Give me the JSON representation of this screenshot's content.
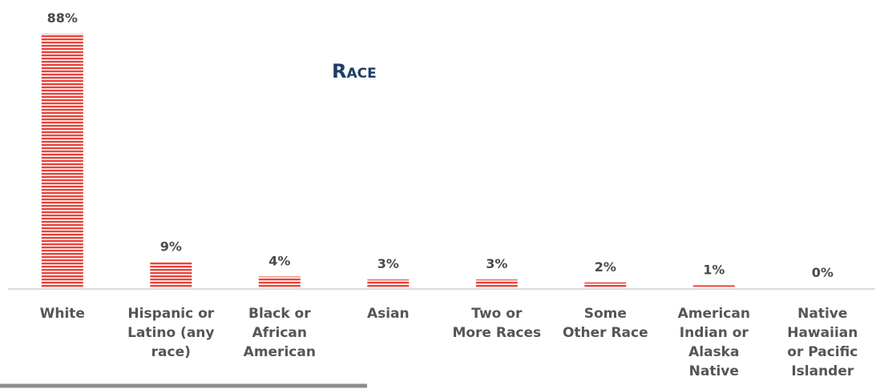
{
  "chart_data": {
    "type": "bar",
    "title": "Race",
    "categories": [
      "White",
      "Hispanic or Latino (any race)",
      "Black or African American",
      "Asian",
      "Two or More Races",
      "Some Other Race",
      "American Indian or Alaska Native",
      "Native Hawaiian or Pacific Islander"
    ],
    "category_lines": [
      [
        "White"
      ],
      [
        "Hispanic or",
        "Latino (any",
        "race)"
      ],
      [
        "Black or",
        "African",
        "American"
      ],
      [
        "Asian"
      ],
      [
        "Two or",
        "More Races"
      ],
      [
        "Some",
        "Other Race"
      ],
      [
        "American",
        "Indian or",
        "Alaska",
        "Native"
      ],
      [
        "Native",
        "Hawaiian",
        "or Pacific",
        "Islander"
      ]
    ],
    "values": [
      88,
      9,
      4,
      3,
      3,
      2,
      1,
      0
    ],
    "value_labels": [
      "88%",
      "9%",
      "4%",
      "3%",
      "3%",
      "2%",
      "1%",
      "0%"
    ],
    "xlabel": "",
    "ylabel": "",
    "ylim": [
      0,
      88
    ],
    "grid": false,
    "colors": {
      "bar": "#e8443a",
      "bar_stripe": "#ffffff",
      "title": "#1f3f66",
      "axis": "#d0d0d0",
      "value_text": "#4a4a4a",
      "category_text": "#555555",
      "underline": "#8c8c8c"
    }
  }
}
